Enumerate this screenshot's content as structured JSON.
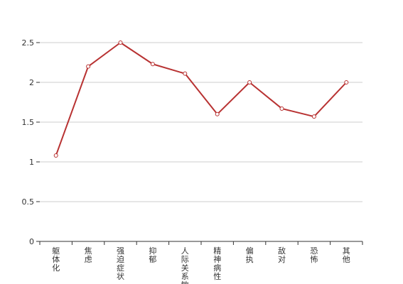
{
  "chart_data": {
    "type": "line",
    "categories": [
      "躯体化",
      "焦虑",
      "强迫症状",
      "抑郁",
      "人际关系敏感",
      "精神病性",
      "偏执",
      "敌对",
      "恐怖",
      "其他"
    ],
    "series": [
      {
        "values": [
          1.08,
          2.2,
          2.5,
          2.23,
          2.11,
          1.6,
          2.0,
          1.67,
          1.57,
          2.0
        ]
      }
    ],
    "ylim": [
      0,
      2.5
    ],
    "yticks": [
      0,
      0.5,
      1,
      1.5,
      2,
      2.5
    ],
    "grid": true,
    "legend": "none",
    "colors": {
      "line": "#b83232",
      "grid": "#cccccc",
      "axis": "#333333"
    }
  }
}
